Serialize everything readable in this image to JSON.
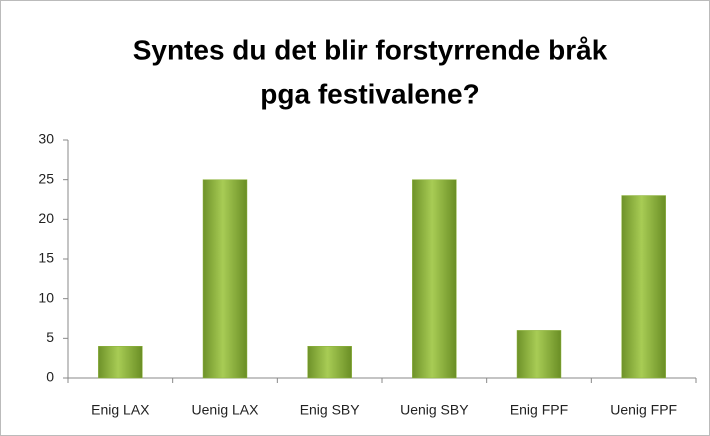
{
  "chart_data": {
    "type": "bar",
    "title": [
      "Syntes du det blir forstyrrende bråk",
      "pga festivalene?"
    ],
    "categories": [
      "Enig LAX",
      "Uenig LAX",
      "Enig SBY",
      "Uenig SBY",
      "Enig FPF",
      "Uenig FPF"
    ],
    "values": [
      4,
      25,
      4,
      25,
      6,
      23
    ],
    "color": "#8db23a",
    "ylim": [
      0,
      30
    ],
    "yticks": [
      0,
      5,
      10,
      15,
      20,
      25,
      30
    ],
    "grid": false
  }
}
